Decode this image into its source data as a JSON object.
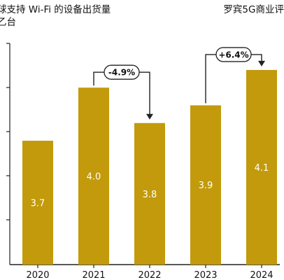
{
  "header": {
    "title_line1": "球支持 Wi-Fi 的设备出货量",
    "title_line2": "乙台",
    "source": "罗宾5G商业评"
  },
  "colors": {
    "bar": "#C29A0B",
    "axis": "#222222",
    "bar_text": "#ffffff"
  },
  "chart_data": {
    "type": "bar",
    "title": "球支持 Wi-Fi 的设备出货量",
    "ylabel": "乙台",
    "xlabel": "",
    "categories": [
      "2020",
      "2021",
      "2022",
      "2023",
      "2024"
    ],
    "values": [
      3.7,
      4.0,
      3.8,
      3.9,
      4.1
    ],
    "value_labels": [
      "3.7",
      "4.0",
      "3.8",
      "3.9",
      "4.1"
    ],
    "ylim": [
      3.0,
      4.25
    ],
    "grid": false,
    "legend": "none",
    "annotations": [
      {
        "from": "2021",
        "to": "2022",
        "text": "-4.9%"
      },
      {
        "from": "2023",
        "to": "2024",
        "text": "+6.4%"
      }
    ]
  }
}
